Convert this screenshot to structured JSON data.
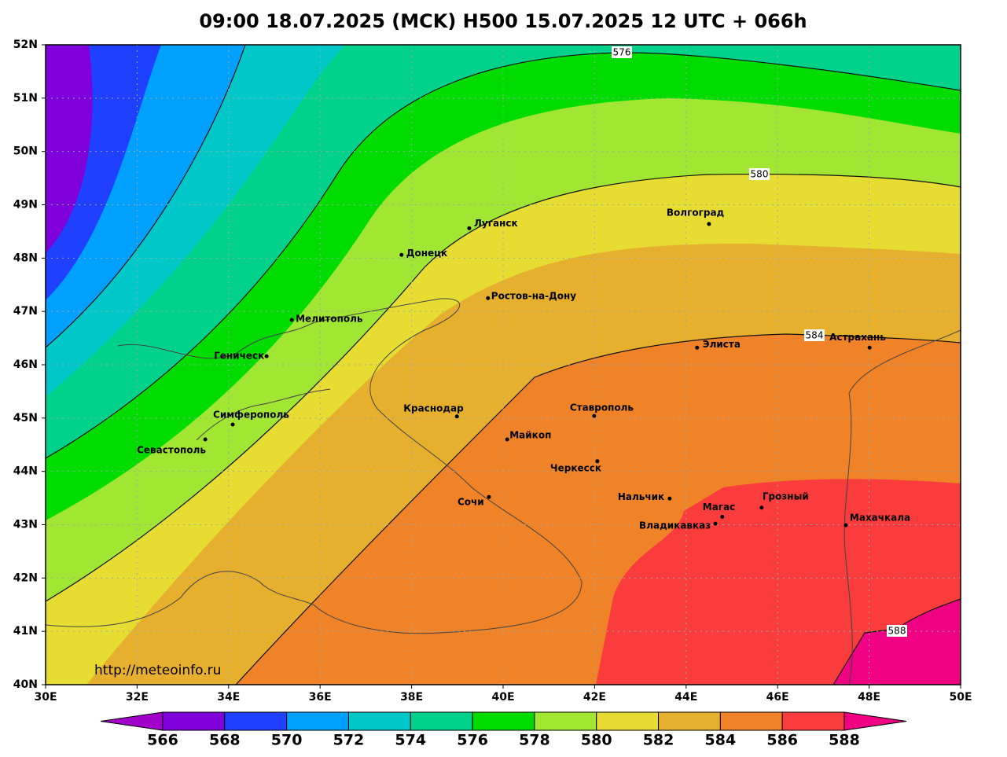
{
  "title": "09:00 18.07.2025 (MCK) H500  15.07.2025 12 UTC + 066h",
  "watermark": "http://meteoinfo.ru",
  "map": {
    "lon_range": [
      30,
      50
    ],
    "lat_range": [
      40,
      52
    ],
    "lon_ticks": [
      {
        "value": 30,
        "label": "30E"
      },
      {
        "value": 32,
        "label": "32E"
      },
      {
        "value": 34,
        "label": "34E"
      },
      {
        "value": 36,
        "label": "36E"
      },
      {
        "value": 38,
        "label": "38E"
      },
      {
        "value": 40,
        "label": "40E"
      },
      {
        "value": 42,
        "label": "42E"
      },
      {
        "value": 44,
        "label": "44E"
      },
      {
        "value": 46,
        "label": "46E"
      },
      {
        "value": 48,
        "label": "48E"
      },
      {
        "value": 50,
        "label": "50E"
      }
    ],
    "lat_ticks": [
      {
        "value": 40,
        "label": "40N"
      },
      {
        "value": 41,
        "label": "41N"
      },
      {
        "value": 42,
        "label": "42N"
      },
      {
        "value": 43,
        "label": "43N"
      },
      {
        "value": 44,
        "label": "44N"
      },
      {
        "value": 45,
        "label": "45N"
      },
      {
        "value": 46,
        "label": "46N"
      },
      {
        "value": 47,
        "label": "47N"
      },
      {
        "value": 48,
        "label": "48N"
      },
      {
        "value": 49,
        "label": "49N"
      },
      {
        "value": 50,
        "label": "50N"
      },
      {
        "value": 51,
        "label": "51N"
      },
      {
        "value": 52,
        "label": "52N"
      }
    ],
    "cities": [
      {
        "name": "Луганск",
        "lon": 39.26,
        "lat": 48.56
      },
      {
        "name": "Донецк",
        "lon": 37.78,
        "lat": 48.06
      },
      {
        "name": "Волгоград",
        "lon": 44.5,
        "lat": 48.64
      },
      {
        "name": "Ростов-на-Дону",
        "lon": 39.67,
        "lat": 47.25
      },
      {
        "name": "Мелитополь",
        "lon": 35.38,
        "lat": 46.84
      },
      {
        "name": "Геническ",
        "lon": 34.83,
        "lat": 46.16
      },
      {
        "name": "Симферополь",
        "lon": 34.09,
        "lat": 44.88
      },
      {
        "name": "Севастополь",
        "lon": 33.49,
        "lat": 44.6
      },
      {
        "name": "Краснодар",
        "lon": 38.99,
        "lat": 45.03
      },
      {
        "name": "Ставрополь",
        "lon": 41.99,
        "lat": 45.04
      },
      {
        "name": "Майкоп",
        "lon": 40.09,
        "lat": 44.6
      },
      {
        "name": "Черкесск",
        "lon": 42.06,
        "lat": 44.19
      },
      {
        "name": "Сочи",
        "lon": 39.69,
        "lat": 43.52
      },
      {
        "name": "Нальчик",
        "lon": 43.64,
        "lat": 43.49
      },
      {
        "name": "Магас",
        "lon": 44.79,
        "lat": 43.15
      },
      {
        "name": "Владикавказ",
        "lon": 44.64,
        "lat": 43.02
      },
      {
        "name": "Грозный",
        "lon": 45.65,
        "lat": 43.32
      },
      {
        "name": "Махачкала",
        "lon": 47.49,
        "lat": 42.99
      },
      {
        "name": "Элиста",
        "lon": 44.24,
        "lat": 46.32
      },
      {
        "name": "Астрахань",
        "lon": 48.01,
        "lat": 46.32
      }
    ],
    "contour_labels": [
      576,
      580,
      584,
      588
    ]
  },
  "colorbar": {
    "ticks": [
      566,
      568,
      570,
      572,
      574,
      576,
      578,
      580,
      582,
      584,
      586,
      588
    ],
    "colors": [
      "#a000c8",
      "#8000dc",
      "#2040ff",
      "#00a0ff",
      "#00c8c8",
      "#00d28c",
      "#00dc00",
      "#a0e632",
      "#e6dc32",
      "#e6af2d",
      "#f08228",
      "#fa3c3c",
      "#f00082"
    ]
  }
}
